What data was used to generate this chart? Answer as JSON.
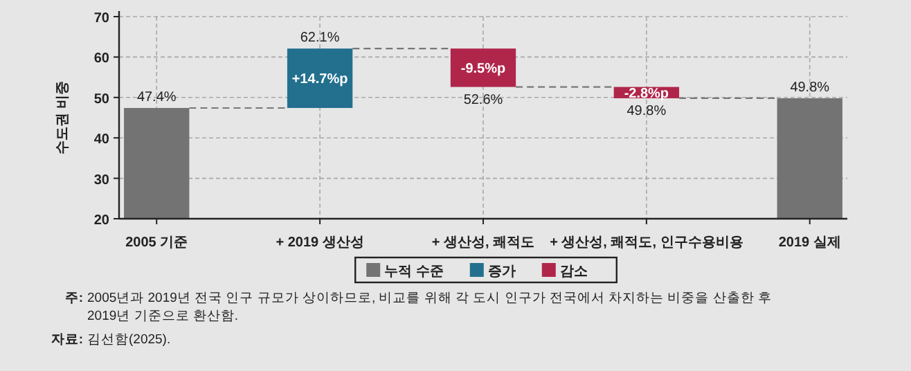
{
  "chart_data": {
    "type": "bar",
    "ylabel": "수도권 비중",
    "categories": [
      "2005 기준",
      "+ 2019 생산성",
      "+ 생산성, 쾌적도",
      "+ 생산성, 쾌적도, 인구수용비용",
      "2019 실제"
    ],
    "series": [
      {
        "name": "누적 수준",
        "color": "#737373",
        "values": [
          47.4,
          null,
          null,
          null,
          49.8
        ],
        "base": [
          0,
          null,
          null,
          null,
          0
        ],
        "value_labels": [
          "47.4%",
          null,
          null,
          null,
          "49.8%"
        ]
      },
      {
        "name": "증가",
        "color": "#23708e",
        "values": [
          null,
          14.7,
          null,
          null,
          null
        ],
        "base": [
          null,
          47.4,
          null,
          null,
          null
        ],
        "value_labels": [
          null,
          "+14.7%p",
          null,
          null,
          null
        ]
      },
      {
        "name": "감소",
        "color": "#b0264a",
        "values": [
          null,
          null,
          -9.5,
          -2.8,
          null
        ],
        "base": [
          null,
          null,
          62.1,
          52.6,
          null
        ],
        "value_labels": [
          null,
          null,
          "-9.5%p",
          "-2.8%p",
          null
        ]
      }
    ],
    "ylim": [
      20,
      70
    ],
    "yticks": [
      20,
      30,
      40,
      50,
      60,
      70
    ],
    "grid": true,
    "legend": "bottom",
    "annotations": [
      {
        "text": "62.1%",
        "x": "+ 2019 생산성",
        "y": 62.1
      },
      {
        "text": "52.6%",
        "x": "+ 생산성, 쾌적도",
        "y": 52.6
      },
      {
        "text": "49.8%",
        "x": "+ 생산성, 쾌적도, 인구수용비용",
        "y": 49.8
      },
      "주: 2005년과 2019년 전국 인구 규모가 상이하므로, 비교를 위해 각 도시 인구가 전국에서 차지하는 비중을 산출한 후 2019년 기준으로 환산함.",
      "자료: 김선함(2025)."
    ]
  }
}
